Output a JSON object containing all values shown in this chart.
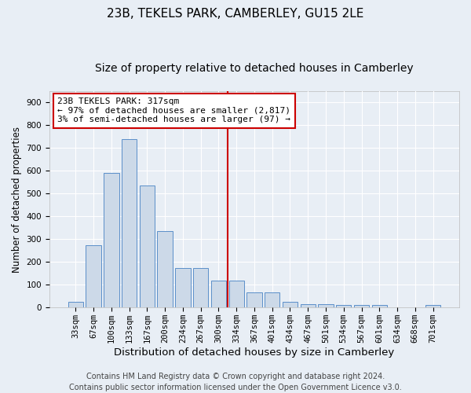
{
  "title": "23B, TEKELS PARK, CAMBERLEY, GU15 2LE",
  "subtitle": "Size of property relative to detached houses in Camberley",
  "xlabel": "Distribution of detached houses by size in Camberley",
  "ylabel": "Number of detached properties",
  "bar_labels": [
    "33sqm",
    "67sqm",
    "100sqm",
    "133sqm",
    "167sqm",
    "200sqm",
    "234sqm",
    "267sqm",
    "300sqm",
    "334sqm",
    "367sqm",
    "401sqm",
    "434sqm",
    "467sqm",
    "501sqm",
    "534sqm",
    "567sqm",
    "601sqm",
    "634sqm",
    "668sqm",
    "701sqm"
  ],
  "bar_values": [
    25,
    275,
    590,
    740,
    535,
    335,
    175,
    175,
    120,
    120,
    65,
    65,
    25,
    15,
    15,
    10,
    10,
    10,
    0,
    0,
    10
  ],
  "bar_color": "#ccd9e8",
  "bar_edge_color": "#5b8fc9",
  "background_color": "#e8eef5",
  "grid_color": "#ffffff",
  "vline_x": 8.51,
  "vline_color": "#cc0000",
  "annotation_text_line1": "23B TEKELS PARK: 317sqm",
  "annotation_text_line2": "← 97% of detached houses are smaller (2,817)",
  "annotation_text_line3": "3% of semi-detached houses are larger (97) →",
  "annotation_box_color": "#ffffff",
  "annotation_box_edge": "#cc0000",
  "ylim": [
    0,
    950
  ],
  "yticks": [
    0,
    100,
    200,
    300,
    400,
    500,
    600,
    700,
    800,
    900
  ],
  "footer_line1": "Contains HM Land Registry data © Crown copyright and database right 2024.",
  "footer_line2": "Contains public sector information licensed under the Open Government Licence v3.0.",
  "title_fontsize": 11,
  "subtitle_fontsize": 10,
  "xlabel_fontsize": 9.5,
  "ylabel_fontsize": 8.5,
  "tick_fontsize": 7.5,
  "annotation_fontsize": 8,
  "footer_fontsize": 7
}
